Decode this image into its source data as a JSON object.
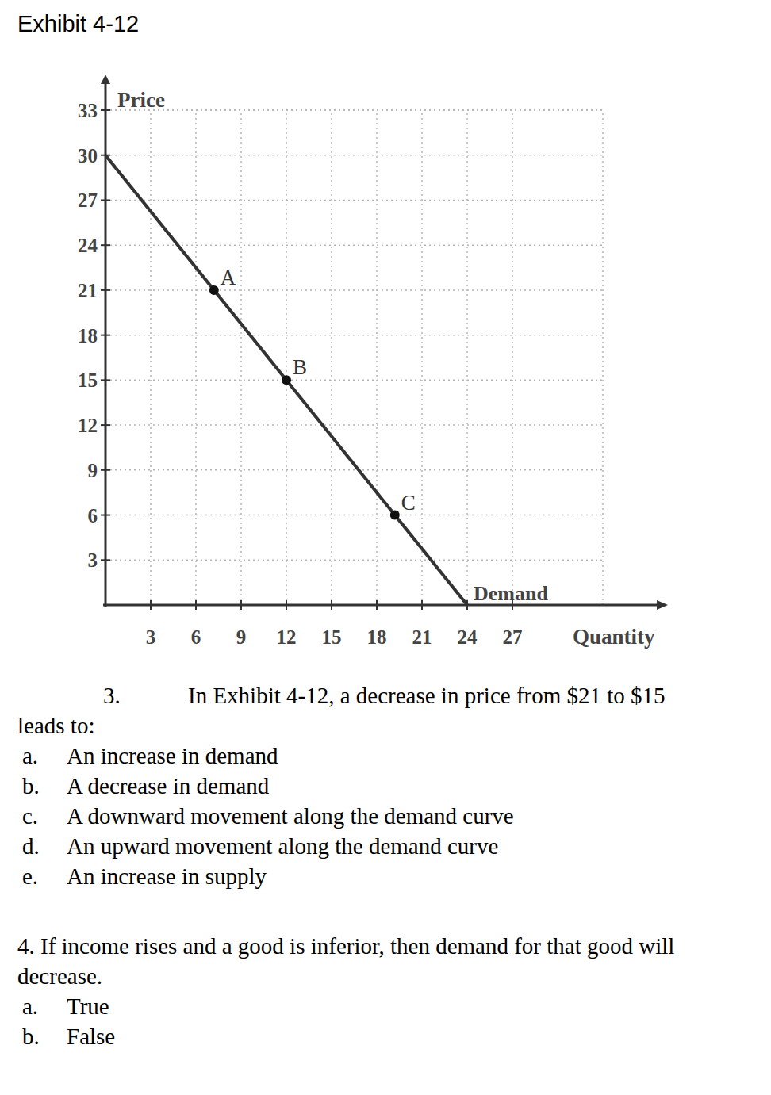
{
  "exhibit": "Exhibit 4-12",
  "chart_data": {
    "type": "line",
    "x_label": "Quantity",
    "y_label": "Price",
    "xlim": [
      0,
      33
    ],
    "ylim": [
      0,
      33
    ],
    "xticks": [
      3,
      6,
      9,
      12,
      15,
      18,
      21,
      24,
      27
    ],
    "yticks": [
      3,
      6,
      9,
      12,
      15,
      18,
      21,
      24,
      27,
      30,
      33
    ],
    "grid": true,
    "x": [
      0,
      24
    ],
    "series": [
      {
        "name": "Demand",
        "color": "#333333",
        "values": [
          30,
          0
        ]
      }
    ],
    "points": [
      {
        "label": "A",
        "x": 7.2,
        "y": 21
      },
      {
        "label": "B",
        "x": 12,
        "y": 15
      },
      {
        "label": "C",
        "x": 19.2,
        "y": 6
      }
    ]
  },
  "questions": [
    {
      "number": "3.",
      "text": "In Exhibit 4-12, a decrease in price from $21 to $15",
      "continuation": "leads to:",
      "options": [
        {
          "letter": "a.",
          "text": "An increase in demand"
        },
        {
          "letter": "b.",
          "text": "A decrease in demand"
        },
        {
          "letter": "c.",
          "text": "A downward movement along the demand curve"
        },
        {
          "letter": "d.",
          "text": "An upward movement along the demand curve"
        },
        {
          "letter": "e.",
          "text": "An increase in supply"
        }
      ]
    },
    {
      "text": "4. If income rises and a good is inferior, then demand for that good will",
      "continuation": "decrease.",
      "options": [
        {
          "letter": "a.",
          "text": "True"
        },
        {
          "letter": "b.",
          "text": "False"
        }
      ]
    }
  ]
}
